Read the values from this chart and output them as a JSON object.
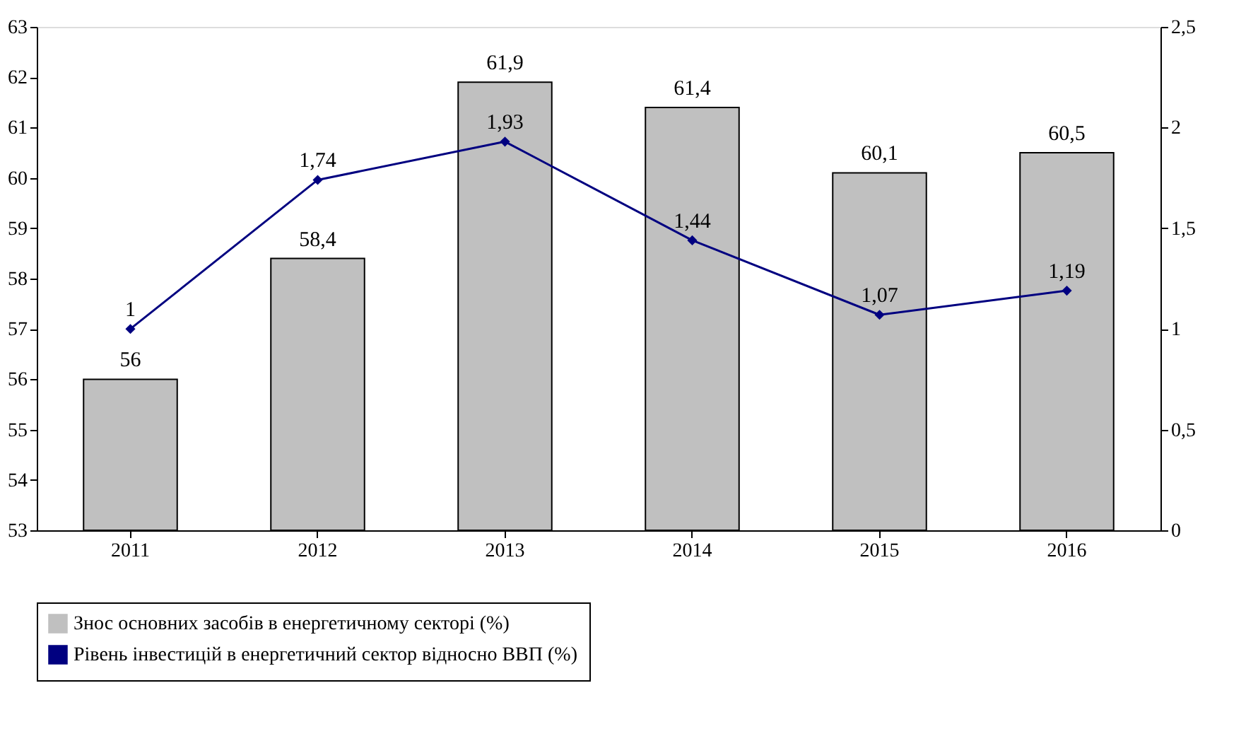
{
  "chart_data": {
    "type": "bar",
    "categories": [
      "2011",
      "2012",
      "2013",
      "2014",
      "2015",
      "2016"
    ],
    "series": [
      {
        "name": "Знос основних засобів в енергетичному секторі (%)",
        "color": "#c0c0c0",
        "values": [
          56,
          58.4,
          61.9,
          61.4,
          60.1,
          60.5
        ],
        "value_labels": [
          "56",
          "58,4",
          "61,9",
          "61,4",
          "60,1",
          "60,5"
        ]
      },
      {
        "name": "Рівень інвестицій в енергетичний сектор відносно ВВП (%)",
        "type": "line",
        "axis": "y2",
        "color": "#000080",
        "values": [
          1,
          1.74,
          1.93,
          1.44,
          1.07,
          1.19
        ],
        "value_labels": [
          "1",
          "1,74",
          "1,93",
          "1,44",
          "1,07",
          "1,19"
        ]
      }
    ],
    "ylim": [
      53,
      63
    ],
    "yticks": [
      53,
      54,
      55,
      56,
      57,
      58,
      59,
      60,
      61,
      62,
      63
    ],
    "y2lim": [
      0,
      2.5
    ],
    "y2ticks": [
      0,
      {
        "value": 0.5,
        "label": "0,5"
      },
      1,
      {
        "value": 1.5,
        "label": "1,5"
      },
      2,
      {
        "value": 2.5,
        "label": "2,5"
      }
    ],
    "marker": "diamond",
    "line_style": "solid",
    "grid": false,
    "legend": "bottom"
  }
}
